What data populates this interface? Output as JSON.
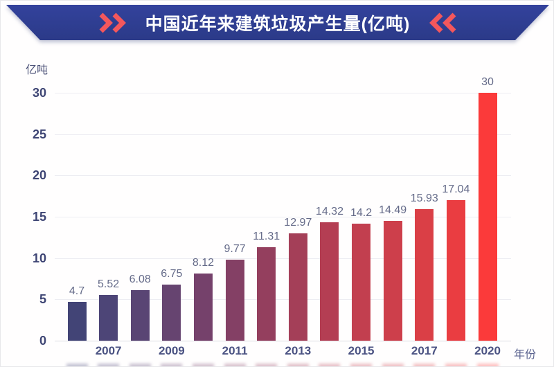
{
  "header": {
    "title": "中国近年来建筑垃圾产生量(亿吨)"
  },
  "axes": {
    "y_unit": "亿吨",
    "x_unit": "年份"
  },
  "colors": {
    "banner_blue_top": "#33429c",
    "banner_blue_bottom": "#2b3a88",
    "chevron_red": "#f4575c",
    "tick_navy": "#3e4574",
    "value_label_gray": "#656b89"
  },
  "chart_data": {
    "type": "bar",
    "title": "中国近年来建筑垃圾产生量(亿吨)",
    "ylabel": "亿吨",
    "xlabel": "年份",
    "values": [
      4.7,
      5.52,
      6.08,
      6.75,
      8.12,
      9.77,
      11.31,
      12.97,
      14.32,
      14.2,
      14.49,
      15.93,
      17.04,
      30
    ],
    "xticks": [
      "",
      "2007",
      "",
      "2009",
      "",
      "2011",
      "",
      "2013",
      "",
      "2015",
      "",
      "2017",
      "",
      "2020"
    ],
    "yticks": [
      0,
      5,
      10,
      15,
      20,
      25,
      30
    ],
    "ylim": [
      0,
      30
    ],
    "grid": true,
    "legend": false,
    "bar_colors": [
      "#424476",
      "#4d4577",
      "#594574",
      "#664470",
      "#75416b",
      "#844065",
      "#943f5e",
      "#a43f58",
      "#b43e53",
      "#c23f4f",
      "#cd3f4b",
      "#da3f46",
      "#ea3d41",
      "#fb3a3a"
    ]
  }
}
